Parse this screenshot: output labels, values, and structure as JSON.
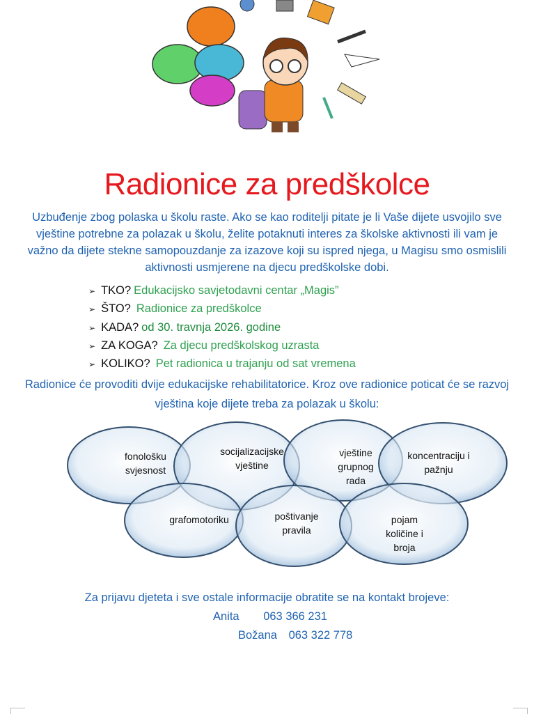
{
  "title": "Radionice za predškolce",
  "intro": "Uzbuđenje zbog polaska u školu raste. Ako se kao roditelji pitate je li Vaše dijete usvojilo sve vještine potrebne za polazak u školu, želite potaknuti interes za školske aktivnosti ili vam je važno da dijete stekne samopouzdanje za izazove koji su ispred njega, u Magisu smo osmislili aktivnosti usmjerene na djecu predškolske dobi.",
  "details": [
    {
      "question": "TKO?",
      "answer": "Edukacijsko savjetodavni centar „Magis”"
    },
    {
      "question": "ŠTO?",
      "answer": "Radionice za predškolce"
    },
    {
      "question": "KADA?",
      "answer": "od 30. travnja 2026. godine"
    },
    {
      "question": "ZA KOGA?",
      "answer": "Za djecu predškolskog uzrasta"
    },
    {
      "question": "KOLIKO?",
      "answer": "Pet radionica u trajanju od sat vremena"
    }
  ],
  "bullet_icon": "arrow-bullet-icon",
  "paragraph2": "Radionice će provoditi dvije edukacijske rehabilitatorice. Kroz ove radionice poticat će se razvoj vještina koje dijete treba za polazak u školu:",
  "skills": [
    "fonološku svjesnost",
    "socijalizacijske vještine",
    "vještine grupnog rada",
    "koncentraciju i pažnju",
    "grafomotoriku",
    "poštivanje pravila",
    "pojam količine i broja"
  ],
  "contact": {
    "intro": "Za prijavu djeteta i sve ostale informacije obratite se na kontakt brojeve:",
    "people": [
      {
        "name": "Anita",
        "phone": "063 366 231"
      },
      {
        "name": "Božana",
        "phone": "063 322 778"
      }
    ]
  },
  "colors": {
    "title": "#e5191e",
    "text_blue": "#1f62b0",
    "answer_green": "#2fa050"
  }
}
